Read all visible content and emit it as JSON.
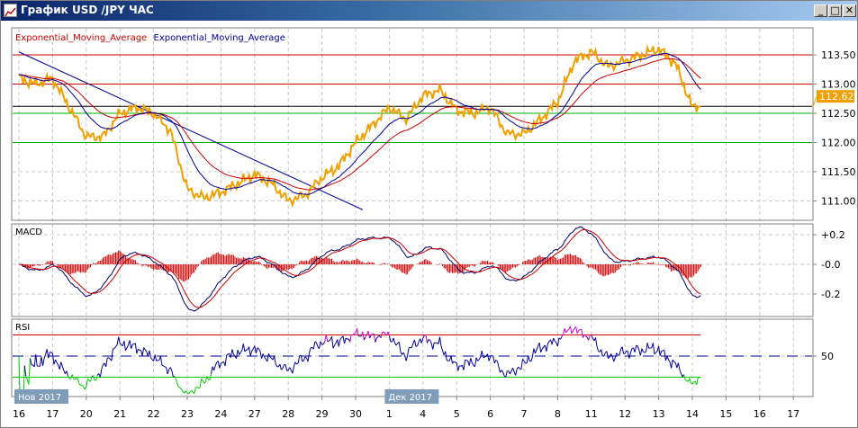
{
  "window": {
    "title": "График USD /JPY ЧАС",
    "buttons": [
      "minimize",
      "maximize",
      "close"
    ],
    "minimize_label": "_",
    "maximize_label": "□",
    "close_label": "✕"
  },
  "chart_data": {
    "type": "line",
    "symbol": "USD/JPY",
    "timeframe": "ЧАС",
    "legend": [
      {
        "name": "Exponential_Moving_Average",
        "color": "#cc0000"
      },
      {
        "name": "Exponential_Moving_Average",
        "color": "#000099"
      }
    ],
    "x_axis": {
      "dates": [
        "11-16",
        "11-17",
        "11-20",
        "11-21",
        "11-22",
        "11-23",
        "11-24",
        "11-27",
        "11-28",
        "11-29",
        "11-30",
        "12-01",
        "12-04",
        "12-05",
        "12-06",
        "12-07",
        "12-08",
        "12-11",
        "12-12",
        "12-13",
        "12-14",
        "12-15",
        "12-16",
        "12-17"
      ],
      "labels": [
        "16",
        "17",
        "20",
        "21",
        "22",
        "23",
        "24",
        "27",
        "28",
        "29",
        "30",
        "1",
        "4",
        "5",
        "6",
        "7",
        "8",
        "11",
        "12",
        "13",
        "14",
        "15",
        "16",
        "17"
      ],
      "month_labels": [
        {
          "date": "11-16",
          "label": "Нов 2017"
        },
        {
          "date": "12-01",
          "label": "Дек 2017"
        }
      ]
    },
    "price": {
      "ylim": [
        110.8,
        113.8
      ],
      "ticks": [
        "113.50",
        "113.00",
        "112.50",
        "112.00",
        "111.50",
        "111.00"
      ],
      "tick_values": [
        113.5,
        113.0,
        112.5,
        112.0,
        111.5,
        111.0
      ],
      "last_price": "112.62",
      "last_price_color": "#f0a000",
      "series_color": "#f0a000",
      "points": [
        [
          "11-16",
          0,
          113.1
        ],
        [
          "11-16",
          12,
          113.0
        ],
        [
          "11-17",
          0,
          113.1
        ],
        [
          "11-17",
          12,
          112.6
        ],
        [
          "11-20",
          0,
          112.1
        ],
        [
          "11-20",
          12,
          112.1
        ],
        [
          "11-21",
          0,
          112.5
        ],
        [
          "11-21",
          12,
          112.6
        ],
        [
          "11-22",
          0,
          112.5
        ],
        [
          "11-22",
          12,
          112.2
        ],
        [
          "11-23",
          0,
          111.2
        ],
        [
          "11-23",
          12,
          111.05
        ],
        [
          "11-24",
          0,
          111.15
        ],
        [
          "11-24",
          12,
          111.3
        ],
        [
          "11-27",
          0,
          111.45
        ],
        [
          "11-27",
          12,
          111.3
        ],
        [
          "11-28",
          0,
          111.0
        ],
        [
          "11-28",
          12,
          111.1
        ],
        [
          "11-29",
          0,
          111.4
        ],
        [
          "11-29",
          12,
          111.6
        ],
        [
          "11-30",
          0,
          112.0
        ],
        [
          "11-30",
          12,
          112.3
        ],
        [
          "12-01",
          0,
          112.6
        ],
        [
          "12-01",
          12,
          112.4
        ],
        [
          "12-04",
          0,
          112.8
        ],
        [
          "12-04",
          12,
          112.9
        ],
        [
          "12-05",
          0,
          112.55
        ],
        [
          "12-05",
          12,
          112.5
        ],
        [
          "12-06",
          0,
          112.6
        ],
        [
          "12-06",
          12,
          112.15
        ],
        [
          "12-07",
          0,
          112.15
        ],
        [
          "12-07",
          12,
          112.4
        ],
        [
          "12-08",
          0,
          112.7
        ],
        [
          "12-08",
          12,
          113.4
        ],
        [
          "12-11",
          0,
          113.55
        ],
        [
          "12-11",
          12,
          113.3
        ],
        [
          "12-12",
          0,
          113.4
        ],
        [
          "12-12",
          12,
          113.5
        ],
        [
          "12-13",
          0,
          113.6
        ],
        [
          "12-13",
          12,
          113.35
        ],
        [
          "12-14",
          0,
          112.6
        ],
        [
          "12-14",
          6,
          112.62
        ]
      ],
      "hlines": [
        {
          "value": 113.5,
          "color": "#cc0000"
        },
        {
          "value": 113.0,
          "color": "#cc0000"
        },
        {
          "value": 112.62,
          "color": "#000000"
        },
        {
          "value": 112.5,
          "color": "#00b000"
        },
        {
          "value": 112.0,
          "color": "#00b000"
        }
      ],
      "trendline": {
        "from": [
          "11-16",
          0,
          113.55
        ],
        "to": [
          "11-30",
          5,
          110.85
        ],
        "color": "#000099"
      }
    },
    "macd": {
      "title": "MACD",
      "ylim": [
        -0.3,
        0.23
      ],
      "ticks": [
        "+0.2",
        "-0.0",
        "-0.2"
      ],
      "tick_values": [
        0.2,
        0.0,
        -0.2
      ],
      "histogram_color": "#cc0000",
      "macd_color": "#000066",
      "signal_color": "#cc0000"
    },
    "rsi": {
      "title": "RSI",
      "ylim": [
        13,
        83
      ],
      "ticks": [
        "50"
      ],
      "tick_values": [
        50
      ],
      "levels": [
        {
          "value": 70,
          "color": "#cc0000"
        },
        {
          "value": 50,
          "color": "#000099"
        },
        {
          "value": 30,
          "color": "#00cc00"
        }
      ],
      "line_color": "#000099",
      "overbought_color": "#cc00cc",
      "oversold_color": "#00cc00"
    }
  }
}
